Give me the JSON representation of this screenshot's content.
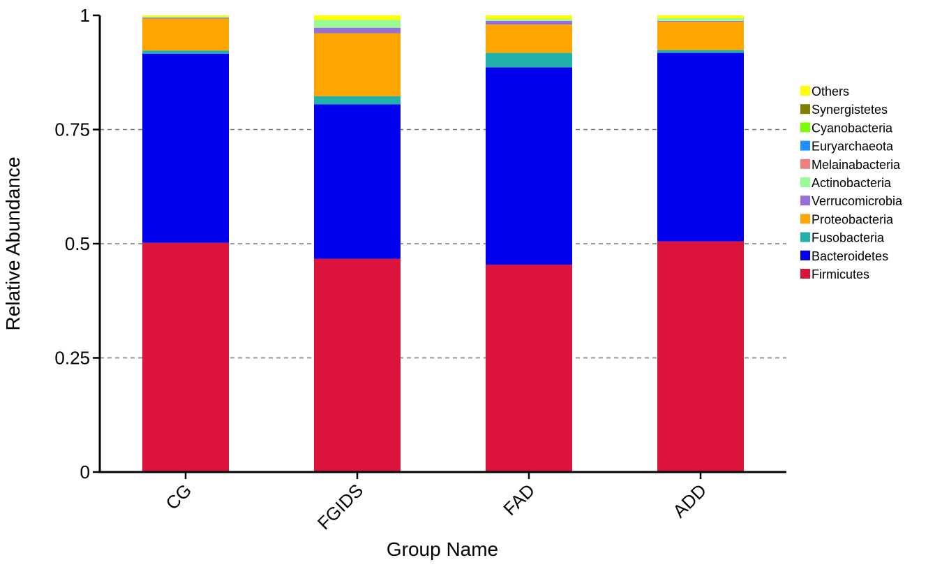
{
  "chart_data": {
    "type": "bar",
    "stacked": true,
    "categories": [
      "CG",
      "FGIDS",
      "FAD",
      "ADD"
    ],
    "xlabel": "Group Name",
    "ylabel": "Relative Abundance",
    "ylim": [
      0,
      1
    ],
    "yticks": [
      0,
      0.25,
      0.5,
      0.75,
      1
    ],
    "ytick_labels": [
      "0",
      "0.25",
      "0.5",
      "0.75",
      "1"
    ],
    "grid": "horizontal-dashed",
    "legend_position": "right",
    "series": [
      {
        "name": "Firmicutes",
        "color": "#dc143c",
        "values": [
          0.502,
          0.467,
          0.454,
          0.505
        ]
      },
      {
        "name": "Bacteroidetes",
        "color": "#0000ee",
        "values": [
          0.414,
          0.338,
          0.432,
          0.413
        ]
      },
      {
        "name": "Fusobacteria",
        "color": "#20b2aa",
        "values": [
          0.007,
          0.018,
          0.032,
          0.006
        ]
      },
      {
        "name": "Proteobacteria",
        "color": "#ffa500",
        "values": [
          0.07,
          0.138,
          0.062,
          0.062
        ]
      },
      {
        "name": "Verrucomicrobia",
        "color": "#9370db",
        "values": [
          0.002,
          0.012,
          0.008,
          0.002
        ]
      },
      {
        "name": "Actinobacteria",
        "color": "#98fb98",
        "values": [
          0.002,
          0.017,
          0.004,
          0.006
        ]
      },
      {
        "name": "Melainabacteria",
        "color": "#f08080",
        "values": [
          0.0,
          0.0,
          0.0,
          0.0
        ]
      },
      {
        "name": "Euryarchaeota",
        "color": "#1e90ff",
        "values": [
          0.0,
          0.0,
          0.0,
          0.0
        ]
      },
      {
        "name": "Cyanobacteria",
        "color": "#7cfc00",
        "values": [
          0.0,
          0.0,
          0.0,
          0.0
        ]
      },
      {
        "name": "Synergistetes",
        "color": "#808000",
        "values": [
          0.0,
          0.0,
          0.0,
          0.0
        ]
      },
      {
        "name": "Others",
        "color": "#ffff00",
        "values": [
          0.003,
          0.01,
          0.008,
          0.006
        ]
      }
    ]
  }
}
